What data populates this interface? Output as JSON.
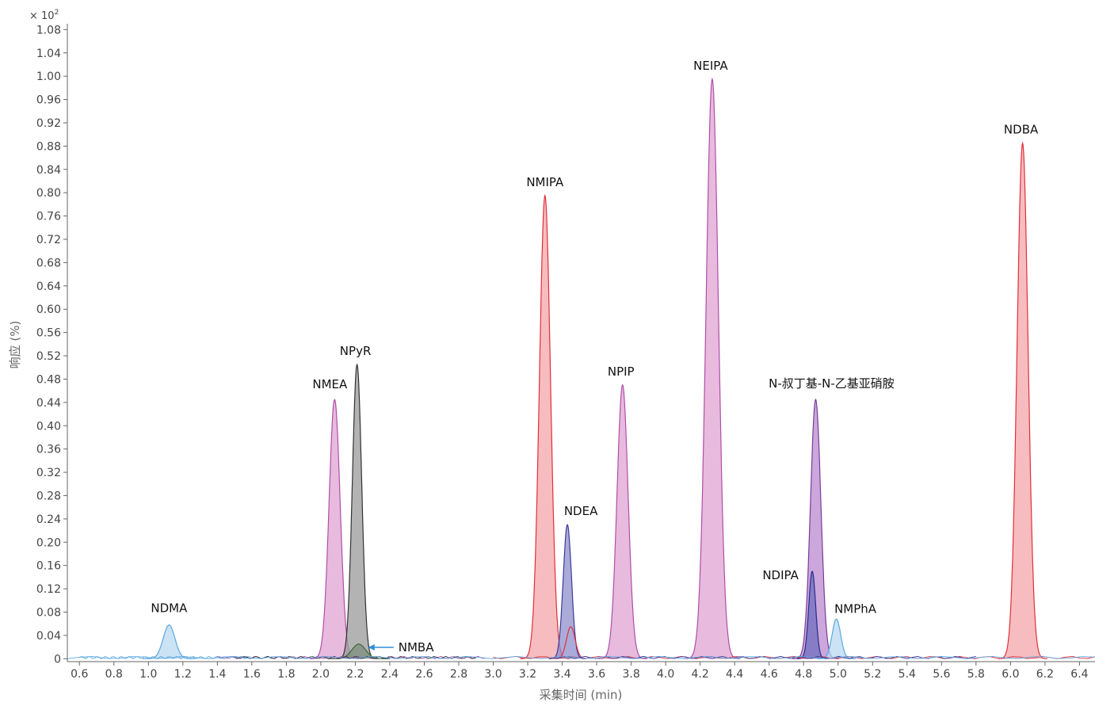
{
  "chart_data": {
    "type": "line",
    "xlabel": "采集时间 (min)",
    "ylabel": "响应 (%)",
    "y_multiplier": "× 10",
    "y_multiplier_exp": "2",
    "xlim": [
      0.53,
      6.49
    ],
    "ylim": [
      -0.005,
      1.09
    ],
    "x_ticks": [
      "0.6",
      "0.8",
      "1.0",
      "1.2",
      "1.4",
      "1.6",
      "1.8",
      "2.0",
      "2.2",
      "2.4",
      "2.6",
      "2.8",
      "3.0",
      "3.2",
      "3.4",
      "3.6",
      "3.8",
      "4.0",
      "4.2",
      "4.4",
      "4.6",
      "4.8",
      "5.0",
      "5.2",
      "5.4",
      "5.6",
      "5.8",
      "6.0",
      "6.2",
      "6.4"
    ],
    "y_ticks": [
      "0",
      "0.04",
      "0.08",
      "0.12",
      "0.16",
      "0.20",
      "0.24",
      "0.28",
      "0.32",
      "0.36",
      "0.40",
      "0.44",
      "0.48",
      "0.52",
      "0.56",
      "0.60",
      "0.64",
      "0.68",
      "0.72",
      "0.76",
      "0.80",
      "0.84",
      "0.88",
      "0.92",
      "0.96",
      "1.00",
      "1.04",
      "1.08"
    ],
    "grid": false,
    "peaks": [
      {
        "label": "NDMA",
        "rt": 1.12,
        "height": 0.058,
        "sigma": 0.034,
        "color": "#5aa8e0",
        "fill": "#b9d9f2"
      },
      {
        "label": "NMEA",
        "rt": 2.08,
        "height": 0.445,
        "sigma": 0.032,
        "color": "#b04fa6",
        "fill": "#dfa3d3"
      },
      {
        "label": "NPyR",
        "rt": 2.21,
        "height": 0.505,
        "sigma": 0.027,
        "color": "#333333",
        "fill": "#9a9a9a"
      },
      {
        "label": "NMBA",
        "rt": 2.22,
        "height": 0.025,
        "sigma": 0.04,
        "color": "#3a6a3a",
        "fill": "#7c8e7c"
      },
      {
        "label": "NMIPA",
        "rt": 3.3,
        "height": 0.795,
        "sigma": 0.032,
        "color": "#e0303a",
        "fill": "#f4a5aa"
      },
      {
        "label": "NDEA",
        "rt": 3.43,
        "height": 0.23,
        "sigma": 0.024,
        "color": "#3a3a9a",
        "fill": "#8f8fcc"
      },
      {
        "label": "NPIP",
        "rt": 3.75,
        "height": 0.47,
        "sigma": 0.032,
        "color": "#b04fa6",
        "fill": "#dfa3d3"
      },
      {
        "label": "NEIPA",
        "rt": 4.27,
        "height": 0.995,
        "sigma": 0.036,
        "color": "#b04fa6",
        "fill": "#dfa3d3"
      },
      {
        "label": "N-叔丁基-N-乙基亚硝胺",
        "rt": 4.87,
        "height": 0.445,
        "sigma": 0.03,
        "color": "#7a3c9a",
        "fill": "#b98ad0"
      },
      {
        "label": "NDIPA",
        "rt": 4.85,
        "height": 0.15,
        "sigma": 0.02,
        "color": "#2a2a8a",
        "fill": "#6f6fbf"
      },
      {
        "label": "NMPhA",
        "rt": 4.99,
        "height": 0.068,
        "sigma": 0.025,
        "color": "#5aa8e0",
        "fill": "#b9d9f2"
      },
      {
        "label": "NDBA",
        "rt": 6.07,
        "height": 0.885,
        "sigma": 0.032,
        "color": "#e0303a",
        "fill": "#f4a5aa"
      }
    ],
    "secondary_bumps": [
      {
        "rt": 3.45,
        "height": 0.055,
        "sigma": 0.025,
        "color": "#e0303a"
      }
    ]
  }
}
